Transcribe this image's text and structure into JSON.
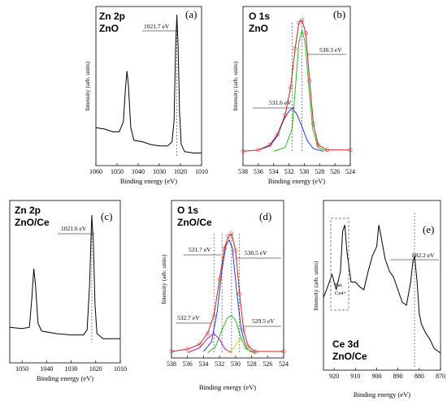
{
  "chart_data": [
    {
      "panel": "a",
      "type": "line",
      "tag": "(a)",
      "title_lines": [
        "Zn 2p",
        "ZnO"
      ],
      "xlabel": "Binding energy (eV)",
      "ylabel": "Intensity (arb. units)",
      "xlim": [
        1060,
        1010
      ],
      "xticks": [
        1060,
        1050,
        1040,
        1030,
        1020,
        1010
      ],
      "annotations": [
        {
          "text": "1021.7 eV",
          "x": 1021.7
        }
      ],
      "series": [
        {
          "color": "#000000",
          "points": [
            [
              1060,
              0.2
            ],
            [
              1056,
              0.19
            ],
            [
              1052,
              0.17
            ],
            [
              1049,
              0.17
            ],
            [
              1047,
              0.24
            ],
            [
              1046,
              0.48
            ],
            [
              1045.3,
              0.6
            ],
            [
              1044.6,
              0.5
            ],
            [
              1043.5,
              0.2
            ],
            [
              1042,
              0.11
            ],
            [
              1038,
              0.1
            ],
            [
              1034,
              0.08
            ],
            [
              1030,
              0.07
            ],
            [
              1026,
              0.07
            ],
            [
              1024,
              0.1
            ],
            [
              1023,
              0.25
            ],
            [
              1022.3,
              0.75
            ],
            [
              1021.7,
              1.0
            ],
            [
              1021.1,
              0.78
            ],
            [
              1020.4,
              0.3
            ],
            [
              1019.6,
              0.08
            ],
            [
              1018,
              0.03
            ],
            [
              1014,
              0.02
            ],
            [
              1010,
              0.02
            ]
          ]
        }
      ]
    },
    {
      "panel": "b",
      "type": "line",
      "tag": "(b)",
      "title_lines": [
        "O 1s",
        "ZnO"
      ],
      "xlabel": "Binding energy (eV)",
      "ylabel": "Intensity (arb. units)",
      "xlim": [
        538,
        524
      ],
      "xticks": [
        538,
        536,
        534,
        532,
        530,
        528,
        526,
        524
      ],
      "annotations": [
        {
          "text": "530.3 eV",
          "x": 530.3
        },
        {
          "text": "531.6 eV",
          "x": 531.6
        }
      ],
      "series": [
        {
          "color": "#1f3fcf",
          "points": [
            [
              536,
              0.02
            ],
            [
              534.5,
              0.05
            ],
            [
              533.5,
              0.13
            ],
            [
              532.7,
              0.25
            ],
            [
              532.0,
              0.32
            ],
            [
              531.6,
              0.34
            ],
            [
              531.0,
              0.3
            ],
            [
              530.3,
              0.2
            ],
            [
              529.6,
              0.09
            ],
            [
              528.8,
              0.03
            ],
            [
              527.5,
              0.01
            ]
          ]
        },
        {
          "color": "#22bb22",
          "points": [
            [
              534,
              0.01
            ],
            [
              532.5,
              0.04
            ],
            [
              531.6,
              0.18
            ],
            [
              531.1,
              0.55
            ],
            [
              530.7,
              0.85
            ],
            [
              530.3,
              0.94
            ],
            [
              529.9,
              0.85
            ],
            [
              529.4,
              0.5
            ],
            [
              528.9,
              0.18
            ],
            [
              528.2,
              0.04
            ],
            [
              527,
              0.01
            ]
          ]
        },
        {
          "color": "#d02020",
          "points": [
            [
              538,
              0.01
            ],
            [
              536,
              0.02
            ],
            [
              534.5,
              0.06
            ],
            [
              533.5,
              0.14
            ],
            [
              532.5,
              0.29
            ],
            [
              531.8,
              0.5
            ],
            [
              531.2,
              0.8
            ],
            [
              530.7,
              1.0
            ],
            [
              530.3,
              1.02
            ],
            [
              529.8,
              0.92
            ],
            [
              529.3,
              0.55
            ],
            [
              528.8,
              0.22
            ],
            [
              528.2,
              0.06
            ],
            [
              527,
              0.02
            ],
            [
              524,
              0.02
            ]
          ]
        }
      ]
    },
    {
      "panel": "c",
      "type": "line",
      "tag": "(c)",
      "title_lines": [
        "Zn 2p",
        "ZnO/Ce"
      ],
      "xlabel": "Binding energy (eV)",
      "ylabel": "",
      "xlim": [
        1055,
        1010
      ],
      "xticks": [
        1050,
        1040,
        1030,
        1020,
        1010
      ],
      "annotations": [
        {
          "text": "1021.6 eV",
          "x": 1021.6
        }
      ],
      "series": [
        {
          "color": "#000000",
          "points": [
            [
              1055,
              0.12
            ],
            [
              1050,
              0.11
            ],
            [
              1047,
              0.12
            ],
            [
              1046,
              0.35
            ],
            [
              1045.2,
              0.58
            ],
            [
              1044.5,
              0.45
            ],
            [
              1043.5,
              0.15
            ],
            [
              1042,
              0.09
            ],
            [
              1036,
              0.07
            ],
            [
              1030,
              0.06
            ],
            [
              1025,
              0.06
            ],
            [
              1023.5,
              0.1
            ],
            [
              1022.5,
              0.45
            ],
            [
              1021.6,
              1.0
            ],
            [
              1021.0,
              0.8
            ],
            [
              1020.3,
              0.3
            ],
            [
              1019.5,
              0.07
            ],
            [
              1017,
              0.03
            ],
            [
              1010,
              0.03
            ]
          ]
        }
      ]
    },
    {
      "panel": "d",
      "type": "line",
      "tag": "(d)",
      "title_lines": [
        "O 1s",
        "ZnO/Ce"
      ],
      "xlabel": "Binding energy (eV)",
      "ylabel": "Intensity (arb. units)",
      "xlim": [
        538,
        524
      ],
      "xticks": [
        538,
        536,
        534,
        532,
        530,
        528,
        526,
        524
      ],
      "annotations": [
        {
          "text": "531.7 eV",
          "x": 531.7
        },
        {
          "text": "530.5 eV",
          "x": 530.5
        },
        {
          "text": "532.7 eV",
          "x": 532.7
        },
        {
          "text": "529.5 eV",
          "x": 529.5
        }
      ],
      "series": [
        {
          "color": "#1f3fcf",
          "points": [
            [
              534,
              0.02
            ],
            [
              533,
              0.1
            ],
            [
              532.3,
              0.35
            ],
            [
              531.7,
              0.7
            ],
            [
              531.2,
              0.9
            ],
            [
              530.8,
              0.95
            ],
            [
              530.4,
              0.88
            ],
            [
              529.9,
              0.55
            ],
            [
              529.3,
              0.2
            ],
            [
              528.6,
              0.04
            ],
            [
              527.5,
              0.01
            ]
          ]
        },
        {
          "color": "#22bb22",
          "points": [
            [
              533.5,
              0.01
            ],
            [
              532.5,
              0.06
            ],
            [
              531.7,
              0.2
            ],
            [
              531.0,
              0.3
            ],
            [
              530.5,
              0.32
            ],
            [
              530.0,
              0.28
            ],
            [
              529.4,
              0.15
            ],
            [
              528.8,
              0.05
            ],
            [
              528,
              0.01
            ]
          ]
        },
        {
          "color": "#b020b0",
          "points": [
            [
              536,
              0.01
            ],
            [
              534.5,
              0.05
            ],
            [
              533.5,
              0.13
            ],
            [
              532.7,
              0.17
            ],
            [
              532.0,
              0.12
            ],
            [
              531.3,
              0.04
            ],
            [
              530.5,
              0.01
            ]
          ]
        },
        {
          "color": "#e0d020",
          "points": [
            [
              531,
              0.01
            ],
            [
              530.2,
              0.05
            ],
            [
              529.5,
              0.13
            ],
            [
              528.9,
              0.08
            ],
            [
              528.2,
              0.02
            ],
            [
              527.5,
              0.0
            ]
          ]
        },
        {
          "color": "#d02020",
          "points": [
            [
              538,
              0.02
            ],
            [
              536,
              0.04
            ],
            [
              534.5,
              0.08
            ],
            [
              533.5,
              0.17
            ],
            [
              532.7,
              0.32
            ],
            [
              532.0,
              0.62
            ],
            [
              531.4,
              0.88
            ],
            [
              530.9,
              0.98
            ],
            [
              530.5,
              1.0
            ],
            [
              530.0,
              0.86
            ],
            [
              529.5,
              0.5
            ],
            [
              529.0,
              0.2
            ],
            [
              528.4,
              0.06
            ],
            [
              527.5,
              0.02
            ],
            [
              524,
              0.02
            ]
          ]
        }
      ]
    },
    {
      "panel": "e",
      "type": "line",
      "tag": "(e)",
      "title_lines": [
        "Ce 3d",
        "ZnO/Ce"
      ],
      "xlabel": "Binding energy (eV)",
      "ylabel": "Intensity (arb. units)",
      "xlim": [
        925,
        870
      ],
      "xticks": [
        920,
        910,
        900,
        890,
        880,
        870
      ],
      "annotations": [
        {
          "text": "882.2 eV",
          "x": 882.2
        },
        {
          "text": "Sat.",
          "x": 915
        },
        {
          "text": "Ce4+",
          "x": 915
        }
      ],
      "series": [
        {
          "color": "#000000",
          "points": [
            [
              925,
              0.45
            ],
            [
              923,
              0.52
            ],
            [
              921,
              0.6
            ],
            [
              919,
              0.5
            ],
            [
              917,
              0.62
            ],
            [
              916,
              0.88
            ],
            [
              915,
              0.92
            ],
            [
              914,
              0.75
            ],
            [
              912,
              0.55
            ],
            [
              910,
              0.55
            ],
            [
              908,
              0.52
            ],
            [
              906,
              0.5
            ],
            [
              904,
              0.62
            ],
            [
              902,
              0.72
            ],
            [
              900,
              0.78
            ],
            [
              899,
              0.92
            ],
            [
              898,
              0.85
            ],
            [
              896,
              0.7
            ],
            [
              894,
              0.62
            ],
            [
              892,
              0.58
            ],
            [
              890,
              0.5
            ],
            [
              888,
              0.42
            ],
            [
              886,
              0.4
            ],
            [
              884,
              0.55
            ],
            [
              883,
              0.68
            ],
            [
              882.2,
              0.72
            ],
            [
              881,
              0.55
            ],
            [
              880,
              0.35
            ],
            [
              879,
              0.28
            ],
            [
              877,
              0.22
            ],
            [
              875,
              0.18
            ],
            [
              873,
              0.12
            ],
            [
              871,
              0.1
            ],
            [
              870,
              0.09
            ]
          ]
        }
      ]
    }
  ]
}
